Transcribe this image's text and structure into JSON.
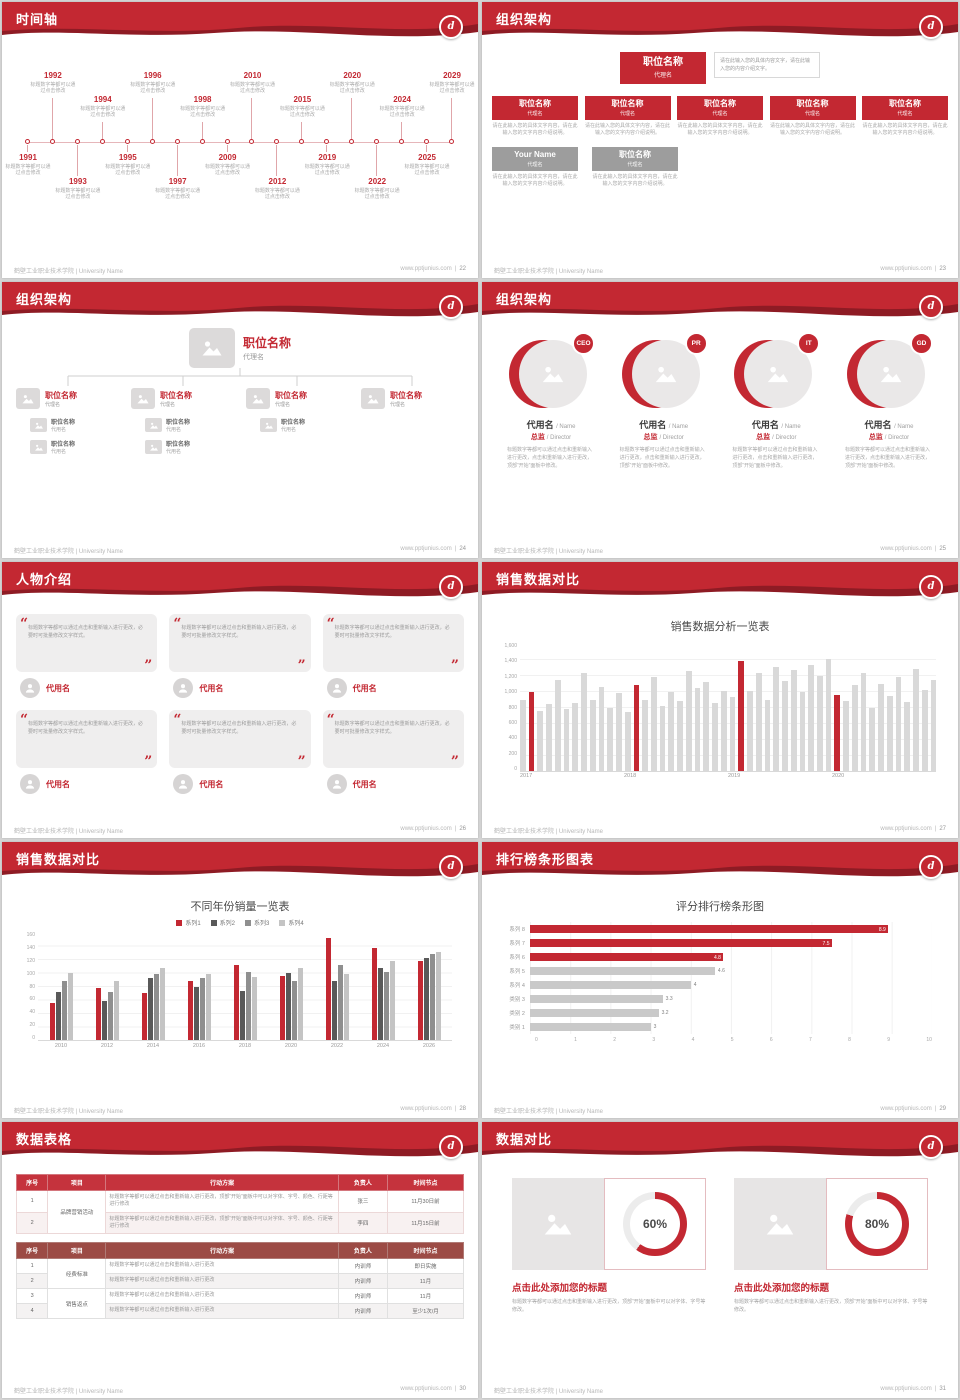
{
  "theme": {
    "red": "#c32832",
    "dark_red": "#8e1b24",
    "bar_gray": "#d9d9d9"
  },
  "footer": {
    "left": "鹤壁工业职业技术学院 | University Name",
    "site": "www.pptjunius.com",
    "divider": "|"
  },
  "slides": {
    "timeline": {
      "title": "时间轴",
      "page": "22",
      "caption": "标题数字等都可以通过点击修改",
      "items": [
        {
          "year": "1991",
          "side": "bottom",
          "level": 0
        },
        {
          "year": "1992",
          "side": "top",
          "level": 0
        },
        {
          "year": "1993",
          "side": "bottom",
          "level": 1
        },
        {
          "year": "1994",
          "side": "top",
          "level": 1
        },
        {
          "year": "1995",
          "side": "bottom",
          "level": 0
        },
        {
          "year": "1996",
          "side": "top",
          "level": 0
        },
        {
          "year": "1997",
          "side": "bottom",
          "level": 1
        },
        {
          "year": "1998",
          "side": "top",
          "level": 1
        },
        {
          "year": "2009",
          "side": "bottom",
          "level": 0
        },
        {
          "year": "2010",
          "side": "top",
          "level": 0
        },
        {
          "year": "2012",
          "side": "bottom",
          "level": 1
        },
        {
          "year": "2015",
          "side": "top",
          "level": 1
        },
        {
          "year": "2019",
          "side": "bottom",
          "level": 0
        },
        {
          "year": "2020",
          "side": "top",
          "level": 0
        },
        {
          "year": "2022",
          "side": "bottom",
          "level": 1
        },
        {
          "year": "2024",
          "side": "top",
          "level": 1
        },
        {
          "year": "2025",
          "side": "bottom",
          "level": 0
        },
        {
          "year": "2029",
          "side": "top",
          "level": 0
        }
      ]
    },
    "org_boxes": {
      "title": "组织架构",
      "page": "23",
      "main": {
        "title": "职位名称",
        "sub": "代理名"
      },
      "note": "请在此输入您的具体内容文字，请在此输入您的内容介绍文字。",
      "caption": "请在此输入您的具体文字内容，请在此输入您的文字内容介绍说明。",
      "boxes": [
        {
          "title": "职位名称",
          "sub": "代理名"
        },
        {
          "title": "职位名称",
          "sub": "代理名"
        },
        {
          "title": "职位名称",
          "sub": "代理名"
        },
        {
          "title": "职位名称",
          "sub": "代理名"
        },
        {
          "title": "职位名称",
          "sub": "代理名"
        }
      ],
      "gray_boxes": [
        {
          "title": "Your Name",
          "sub": "代理名"
        },
        {
          "title": "职位名称",
          "sub": "代理名"
        }
      ]
    },
    "org_tree": {
      "title": "组织架构",
      "page": "24",
      "root": {
        "title": "职位名称",
        "sub": "代理名"
      },
      "branches": [
        {
          "title": "职位名称",
          "sub": "代理名",
          "leaves": [
            {
              "title": "职位名称",
              "sub": "代用名"
            },
            {
              "title": "职位名称",
              "sub": "代用名"
            }
          ]
        },
        {
          "title": "职位名称",
          "sub": "代理名",
          "leaves": [
            {
              "title": "职位名称",
              "sub": "代用名"
            },
            {
              "title": "职位名称",
              "sub": "代用名"
            }
          ]
        },
        {
          "title": "职位名称",
          "sub": "代理名",
          "leaves": [
            {
              "title": "职位名称",
              "sub": "代用名"
            }
          ]
        },
        {
          "title": "职位名称",
          "sub": "代理名",
          "leaves": []
        }
      ]
    },
    "org_members": {
      "title": "组织架构",
      "page": "25",
      "name": "代用名",
      "name_suffix": "/ Name",
      "role": "总监",
      "role_suffix": "/ Director",
      "caption": "标题数字等都可以通过点击和重新输入进行更改，点击和重新输入进行更改，顶部“开始”面板中修改。",
      "members": [
        {
          "badge": "CEO"
        },
        {
          "badge": "PR"
        },
        {
          "badge": "IT"
        },
        {
          "badge": "GD"
        }
      ]
    },
    "people": {
      "title": "人物介绍",
      "page": "26",
      "name": "代用名",
      "caption": "标题数字等都可以通过点击和重新输入进行更改，必要时可批量修改文字样式。",
      "cards": 6
    },
    "sales": {
      "title": "销售数据对比",
      "page": "27"
    },
    "years": {
      "title": "销售数据对比",
      "page": "28"
    },
    "ranking": {
      "title": "排行榜条形图表",
      "page": "29"
    },
    "tables": {
      "title": "数据表格",
      "page": "30",
      "t1": {
        "headers": [
          "序号",
          "项目",
          "行动方案",
          "负责人",
          "时间节点"
        ],
        "project": "品牌营销活动",
        "rows": [
          {
            "no": "1",
            "plan": "标题数字等都可以通过点击和重新输入进行更改，顶部“开始”面板中可以对字体、字号、颜色、行距等进行修改",
            "owner": "张三",
            "time": "11月30日前"
          },
          {
            "no": "2",
            "plan": "标题数字等都可以通过点击和重新输入进行更改，顶部“开始”面板中可以对字体、字号、颜色、行距等进行修改",
            "owner": "李四",
            "time": "11月15日前"
          }
        ]
      },
      "t2": {
        "headers": [
          "序号",
          "项目",
          "行动方案",
          "负责人",
          "时间节点"
        ],
        "projects": [
          "经费标准",
          "销售返点"
        ],
        "rows": [
          {
            "no": "1",
            "plan": "标题数字等都可以通过点击和重新输入进行更改",
            "owner": "内训师",
            "time": "即日实施"
          },
          {
            "no": "2",
            "plan": "标题数字等都可以通过点击和重新输入进行更改",
            "owner": "内训师",
            "time": "11月"
          },
          {
            "no": "3",
            "plan": "标题数字等都可以通过点击和重新输入进行更改",
            "owner": "内训师",
            "time": "11月"
          },
          {
            "no": "4",
            "plan": "标题数字等都可以通过点击和重新输入进行更改",
            "owner": "内训师",
            "time": "至少1次/月"
          }
        ]
      }
    },
    "compare": {
      "title": "数据对比",
      "page": "31",
      "heading": "点击此处添加您的标题",
      "caption": "标题数字等都可以通过点击和重新输入进行更改，顶部“开始”面板中可以对字体、字号等修改。",
      "items": [
        {
          "pct": 60,
          "label": "60%"
        },
        {
          "pct": 80,
          "label": "80%"
        }
      ]
    }
  },
  "chart_data": [
    {
      "id": "sales_monthly",
      "type": "bar",
      "title": "销售数据分析一览表",
      "x_groups": [
        "2017",
        "2018",
        "2019",
        "2020"
      ],
      "values": [
        900,
        1000,
        760,
        840,
        1150,
        780,
        860,
        1240,
        900,
        1060,
        800,
        980,
        740,
        1080,
        900,
        1180,
        820,
        1000,
        880,
        1260,
        1040,
        1120,
        860,
        1010,
        930,
        1390,
        1010,
        1230,
        900,
        1310,
        1140,
        1270,
        1000,
        1340,
        1200,
        1410,
        960,
        880,
        1080,
        1230,
        800,
        1100,
        940,
        1190,
        870,
        1280,
        1020,
        1150
      ],
      "red_indices": [
        1,
        13,
        25,
        36
      ],
      "ylim": [
        0,
        1600
      ],
      "yticks": [
        0,
        200,
        400,
        600,
        800,
        1000,
        1200,
        1400,
        1600
      ],
      "bar_color": "#d9d9d9",
      "highlight_color": "#c32832"
    },
    {
      "id": "yearly_series",
      "type": "bar",
      "title": "不同年份销量一览表",
      "categories": [
        "2010",
        "2012",
        "2014",
        "2016",
        "2018",
        "2020",
        "2022",
        "2024",
        "2026"
      ],
      "series": [
        {
          "name": "系列1",
          "color": "#c32832",
          "values": [
            55,
            78,
            70,
            88,
            112,
            95,
            152,
            138,
            118
          ]
        },
        {
          "name": "系列2",
          "color": "#595959",
          "values": [
            72,
            58,
            92,
            80,
            74,
            100,
            88,
            108,
            122
          ]
        },
        {
          "name": "系列3",
          "color": "#8f8f8f",
          "values": [
            88,
            72,
            98,
            92,
            102,
            88,
            112,
            102,
            128
          ]
        },
        {
          "name": "系列4",
          "color": "#c4c4c4",
          "values": [
            100,
            88,
            108,
            98,
            94,
            108,
            98,
            118,
            132
          ]
        }
      ],
      "ylim": [
        0,
        160
      ],
      "yticks": [
        0,
        20,
        40,
        60,
        80,
        100,
        120,
        140,
        160
      ]
    },
    {
      "id": "ranking_scores",
      "type": "bar_horizontal",
      "title": "评分排行榜条形图",
      "categories": [
        "系列 8",
        "系列 7",
        "系列 6",
        "系列 5",
        "系列 4",
        "类别 3",
        "类别 2",
        "类别 1"
      ],
      "values": [
        8.9,
        7.5,
        4.8,
        4.6,
        4,
        3.3,
        3.2,
        3
      ],
      "colors": [
        "red",
        "red",
        "red",
        "gray",
        "gray",
        "gray",
        "gray",
        "gray"
      ],
      "xlim": [
        0,
        10
      ],
      "xticks": [
        0,
        1,
        2,
        3,
        4,
        5,
        6,
        7,
        8,
        9,
        10
      ],
      "bar_color": "#c9c9c9",
      "highlight_color": "#c32832"
    }
  ]
}
